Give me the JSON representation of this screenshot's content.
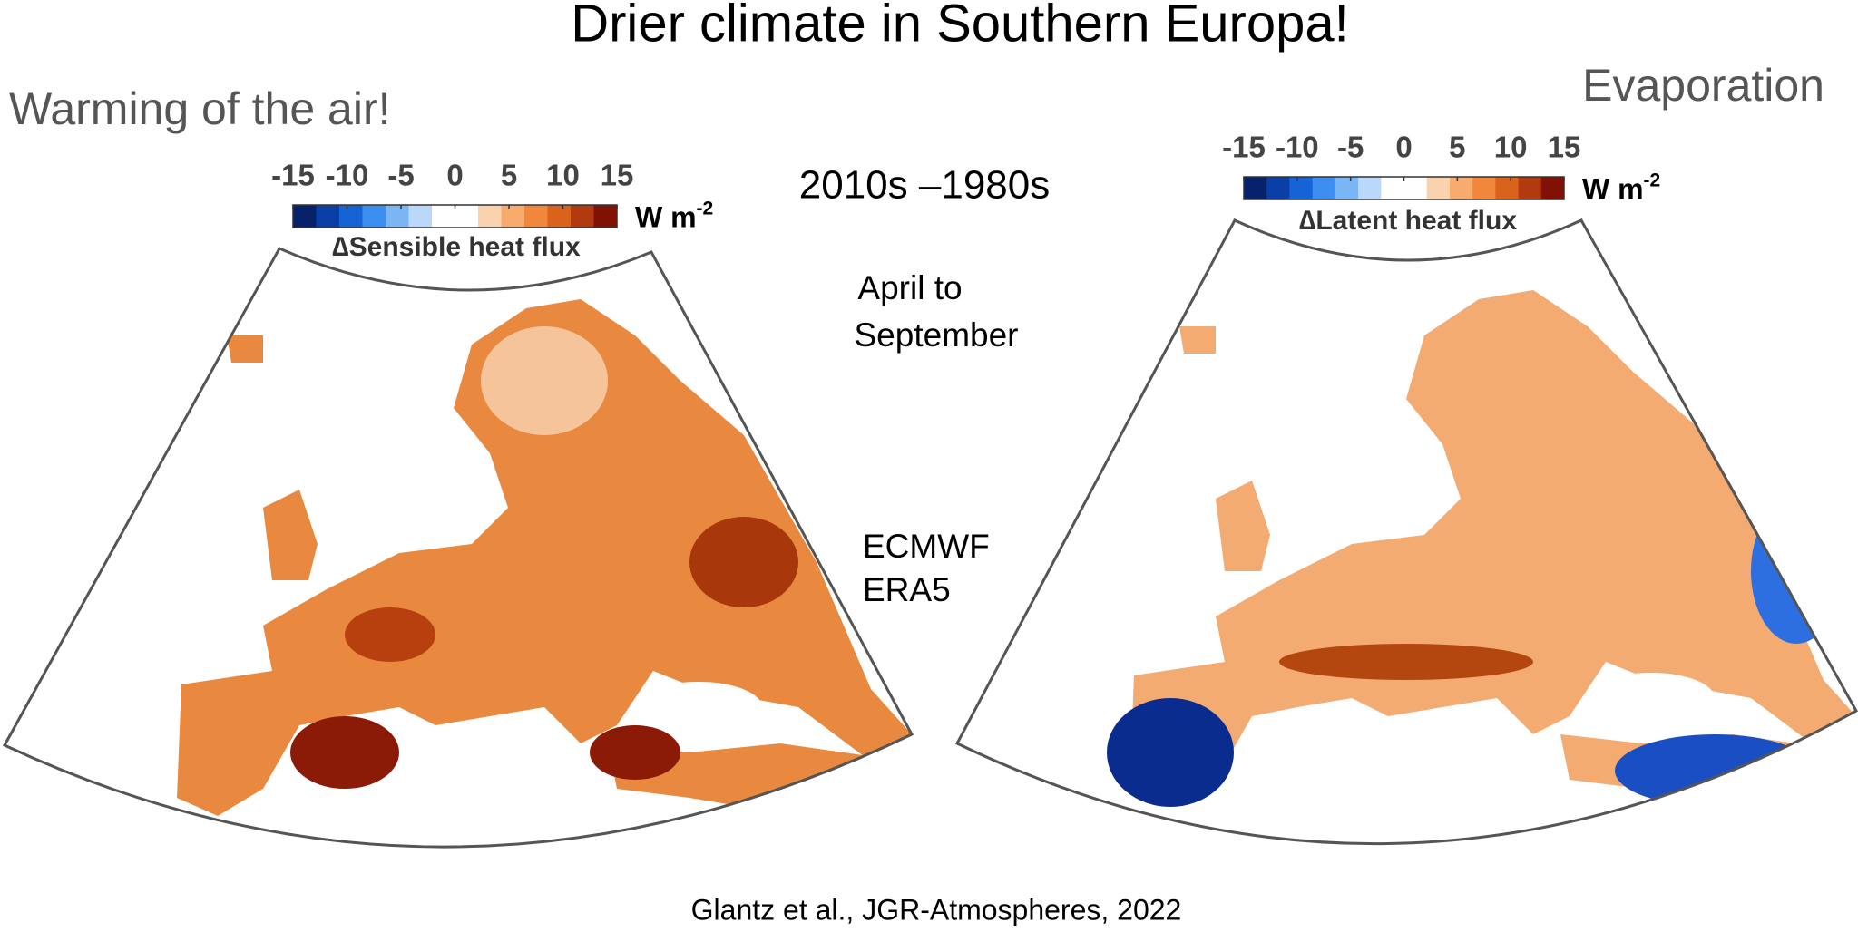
{
  "title": "Drier climate in Southern Europa!",
  "left_note": "Warming of the air!",
  "right_note": "Evaporation",
  "period": "2010s –1980s",
  "season": [
    "April to",
    "September"
  ],
  "dataset": [
    "ECMWF",
    "ERA5"
  ],
  "citation": "Glantz et al., JGR-Atmospheres, 2022",
  "panels": [
    {
      "colorbar": {
        "label": "∆Sensible heat flux",
        "unit": "W m",
        "unit_exponent": "-2",
        "lim": [
          -15,
          15
        ],
        "ticks": [
          -15,
          -10,
          -5,
          0,
          5,
          10,
          15
        ],
        "colors": [
          "#08216b",
          "#0a3fa8",
          "#1663d6",
          "#3c8ff0",
          "#7ab6f5",
          "#b9d8fa",
          "#ffffff",
          "#ffffff",
          "#fbd2ae",
          "#f7ab6c",
          "#f0873a",
          "#d9631b",
          "#b33a0e",
          "#7f1205"
        ]
      }
    },
    {
      "colorbar": {
        "label": "∆Latent heat flux",
        "unit": "W m",
        "unit_exponent": "-2",
        "lim": [
          -15,
          15
        ],
        "ticks": [
          -15,
          -10,
          -5,
          0,
          5,
          10,
          15
        ],
        "colors": [
          "#08216b",
          "#0a3fa8",
          "#1663d6",
          "#3c8ff0",
          "#7ab6f5",
          "#b9d8fa",
          "#ffffff",
          "#ffffff",
          "#fbd2ae",
          "#f7ab6c",
          "#f0873a",
          "#d9631b",
          "#b33a0e",
          "#7f1205"
        ]
      }
    }
  ]
}
